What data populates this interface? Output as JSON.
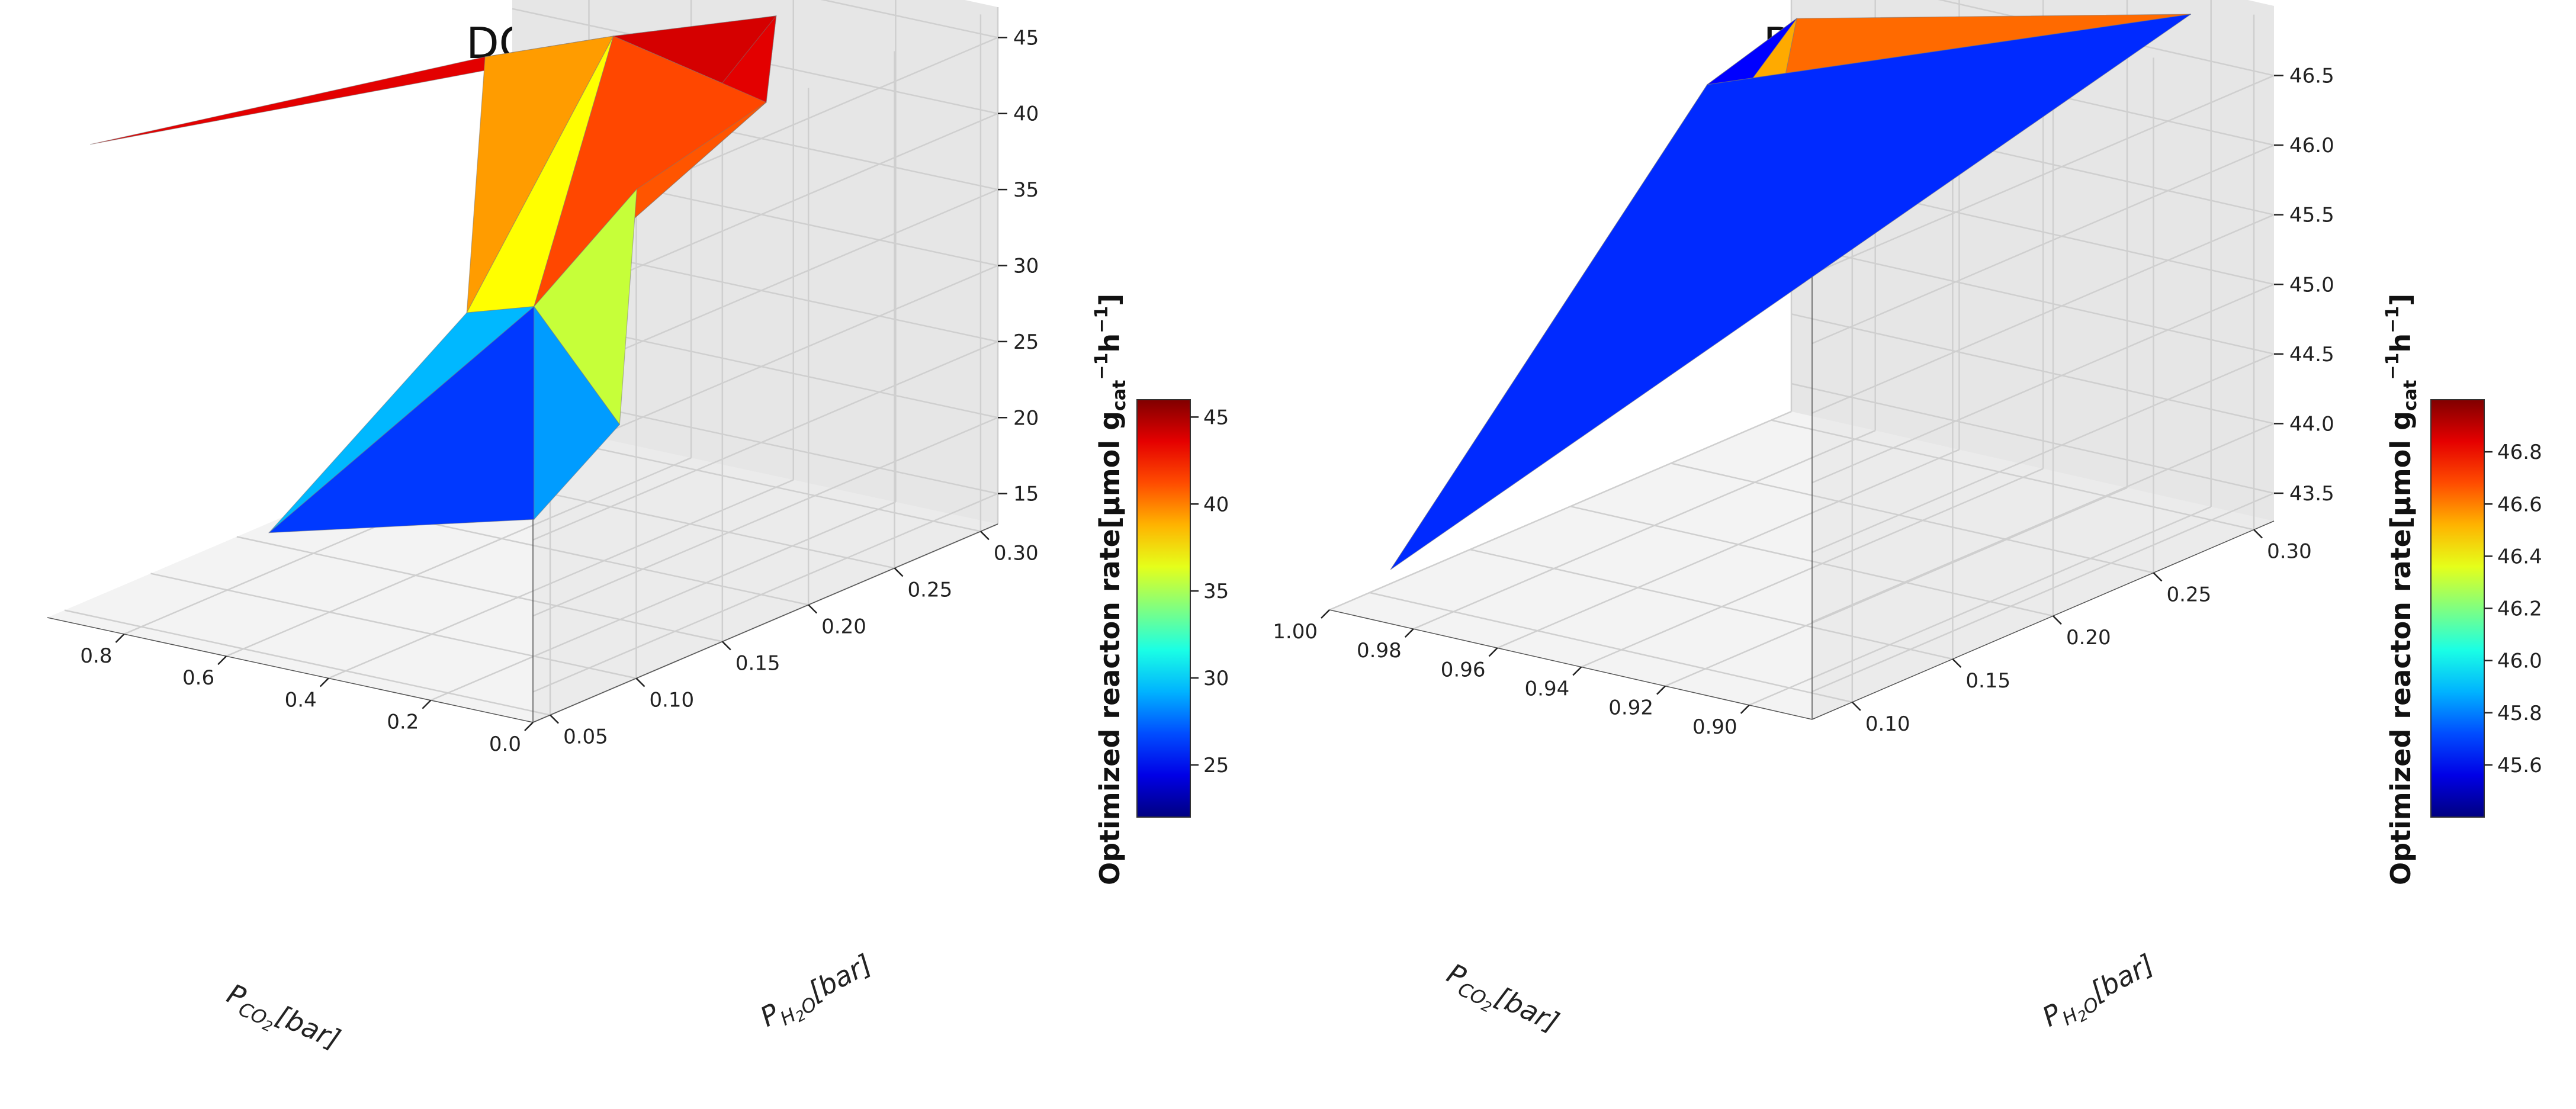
{
  "figure": {
    "panels": [
      "DOE",
      "BO"
    ]
  },
  "chart_data": [
    {
      "type": "surface3d",
      "title": "DOE",
      "xlabel": "P_{CO2}[bar]",
      "ylabel": "P_{H2O}[bar]",
      "zlabel": "Optimized reacton rate[μmol g_cat^-1 h^-1]",
      "x_ticks": [
        "0.0",
        "0.2",
        "0.4",
        "0.6",
        "0.8"
      ],
      "y_ticks": [
        "0.05",
        "0.10",
        "0.15",
        "0.20",
        "0.25",
        "0.30"
      ],
      "z_ticks": [
        "15",
        "20",
        "25",
        "30",
        "35",
        "40",
        "45"
      ],
      "xlim": [
        0.0,
        0.95
      ],
      "ylim": [
        0.04,
        0.31
      ],
      "zlim": [
        13,
        47
      ],
      "colorbar": {
        "ticks": [
          "25",
          "30",
          "35",
          "40",
          "45"
        ],
        "range": [
          22,
          46
        ],
        "colormap": "jet"
      },
      "points": [
        {
          "x": 0.4,
          "y": 0.3,
          "z": 44
        },
        {
          "x": 0.1,
          "y": 0.13,
          "z": 43
        },
        {
          "x": 0.15,
          "y": 0.22,
          "z": 44
        },
        {
          "x": 0.55,
          "y": 0.25,
          "z": 44
        },
        {
          "x": 0.7,
          "y": 0.22,
          "z": 43
        },
        {
          "x": 0.9,
          "y": 0.05,
          "z": 44
        },
        {
          "x": 0.2,
          "y": 0.1,
          "z": 36
        },
        {
          "x": 0.5,
          "y": 0.15,
          "z": 31
        },
        {
          "x": 0.1,
          "y": 0.12,
          "z": 28
        },
        {
          "x": 0.2,
          "y": 0.1,
          "z": 22
        },
        {
          "x": 0.55,
          "y": 0.05,
          "z": 21
        }
      ],
      "triangles": [
        [
          0,
          1,
          2
        ],
        [
          0,
          2,
          3
        ],
        [
          3,
          4,
          0
        ],
        [
          4,
          5,
          0
        ],
        [
          2,
          6,
          3
        ],
        [
          3,
          7,
          4
        ],
        [
          6,
          7,
          3
        ],
        [
          1,
          6,
          2
        ],
        [
          1,
          8,
          6
        ],
        [
          8,
          9,
          6
        ],
        [
          6,
          10,
          7
        ],
        [
          9,
          10,
          6
        ]
      ]
    },
    {
      "type": "surface3d",
      "title": "BO",
      "xlabel": "P_{CO2}[bar]",
      "ylabel": "P_{H2O}[bar]",
      "zlabel": "Optimized reacton rate[μmol g_cat^-1 h^-1]",
      "x_ticks": [
        "0.90",
        "0.92",
        "0.94",
        "0.96",
        "0.98",
        "1.00"
      ],
      "y_ticks": [
        "0.10",
        "0.15",
        "0.20",
        "0.25",
        "0.30"
      ],
      "z_ticks": [
        "43.5",
        "44.0",
        "44.5",
        "45.0",
        "45.5",
        "46.0",
        "46.5"
      ],
      "xlim": [
        0.885,
        1.0
      ],
      "ylim": [
        0.08,
        0.31
      ],
      "zlim": [
        43.3,
        47.0
      ],
      "colorbar": {
        "ticks": [
          "45.6",
          "45.8",
          "46.0",
          "46.2",
          "46.4",
          "46.6",
          "46.8"
        ],
        "range": [
          45.4,
          47.0
        ],
        "colormap": "jet"
      },
      "points": [
        {
          "x": 0.9,
          "y": 0.3,
          "z": 46.9
        },
        {
          "x": 0.965,
          "y": 0.195,
          "z": 46.6
        },
        {
          "x": 0.97,
          "y": 0.25,
          "z": 46.7
        },
        {
          "x": 0.995,
          "y": 0.1,
          "z": 43.5
        },
        {
          "x": 0.96,
          "y": 0.22,
          "z": 46.3
        }
      ],
      "triangles": [
        [
          0,
          1,
          4
        ],
        [
          0,
          4,
          2
        ],
        [
          0,
          1,
          3
        ],
        [
          1,
          3,
          2
        ],
        [
          4,
          2,
          1
        ]
      ]
    }
  ]
}
